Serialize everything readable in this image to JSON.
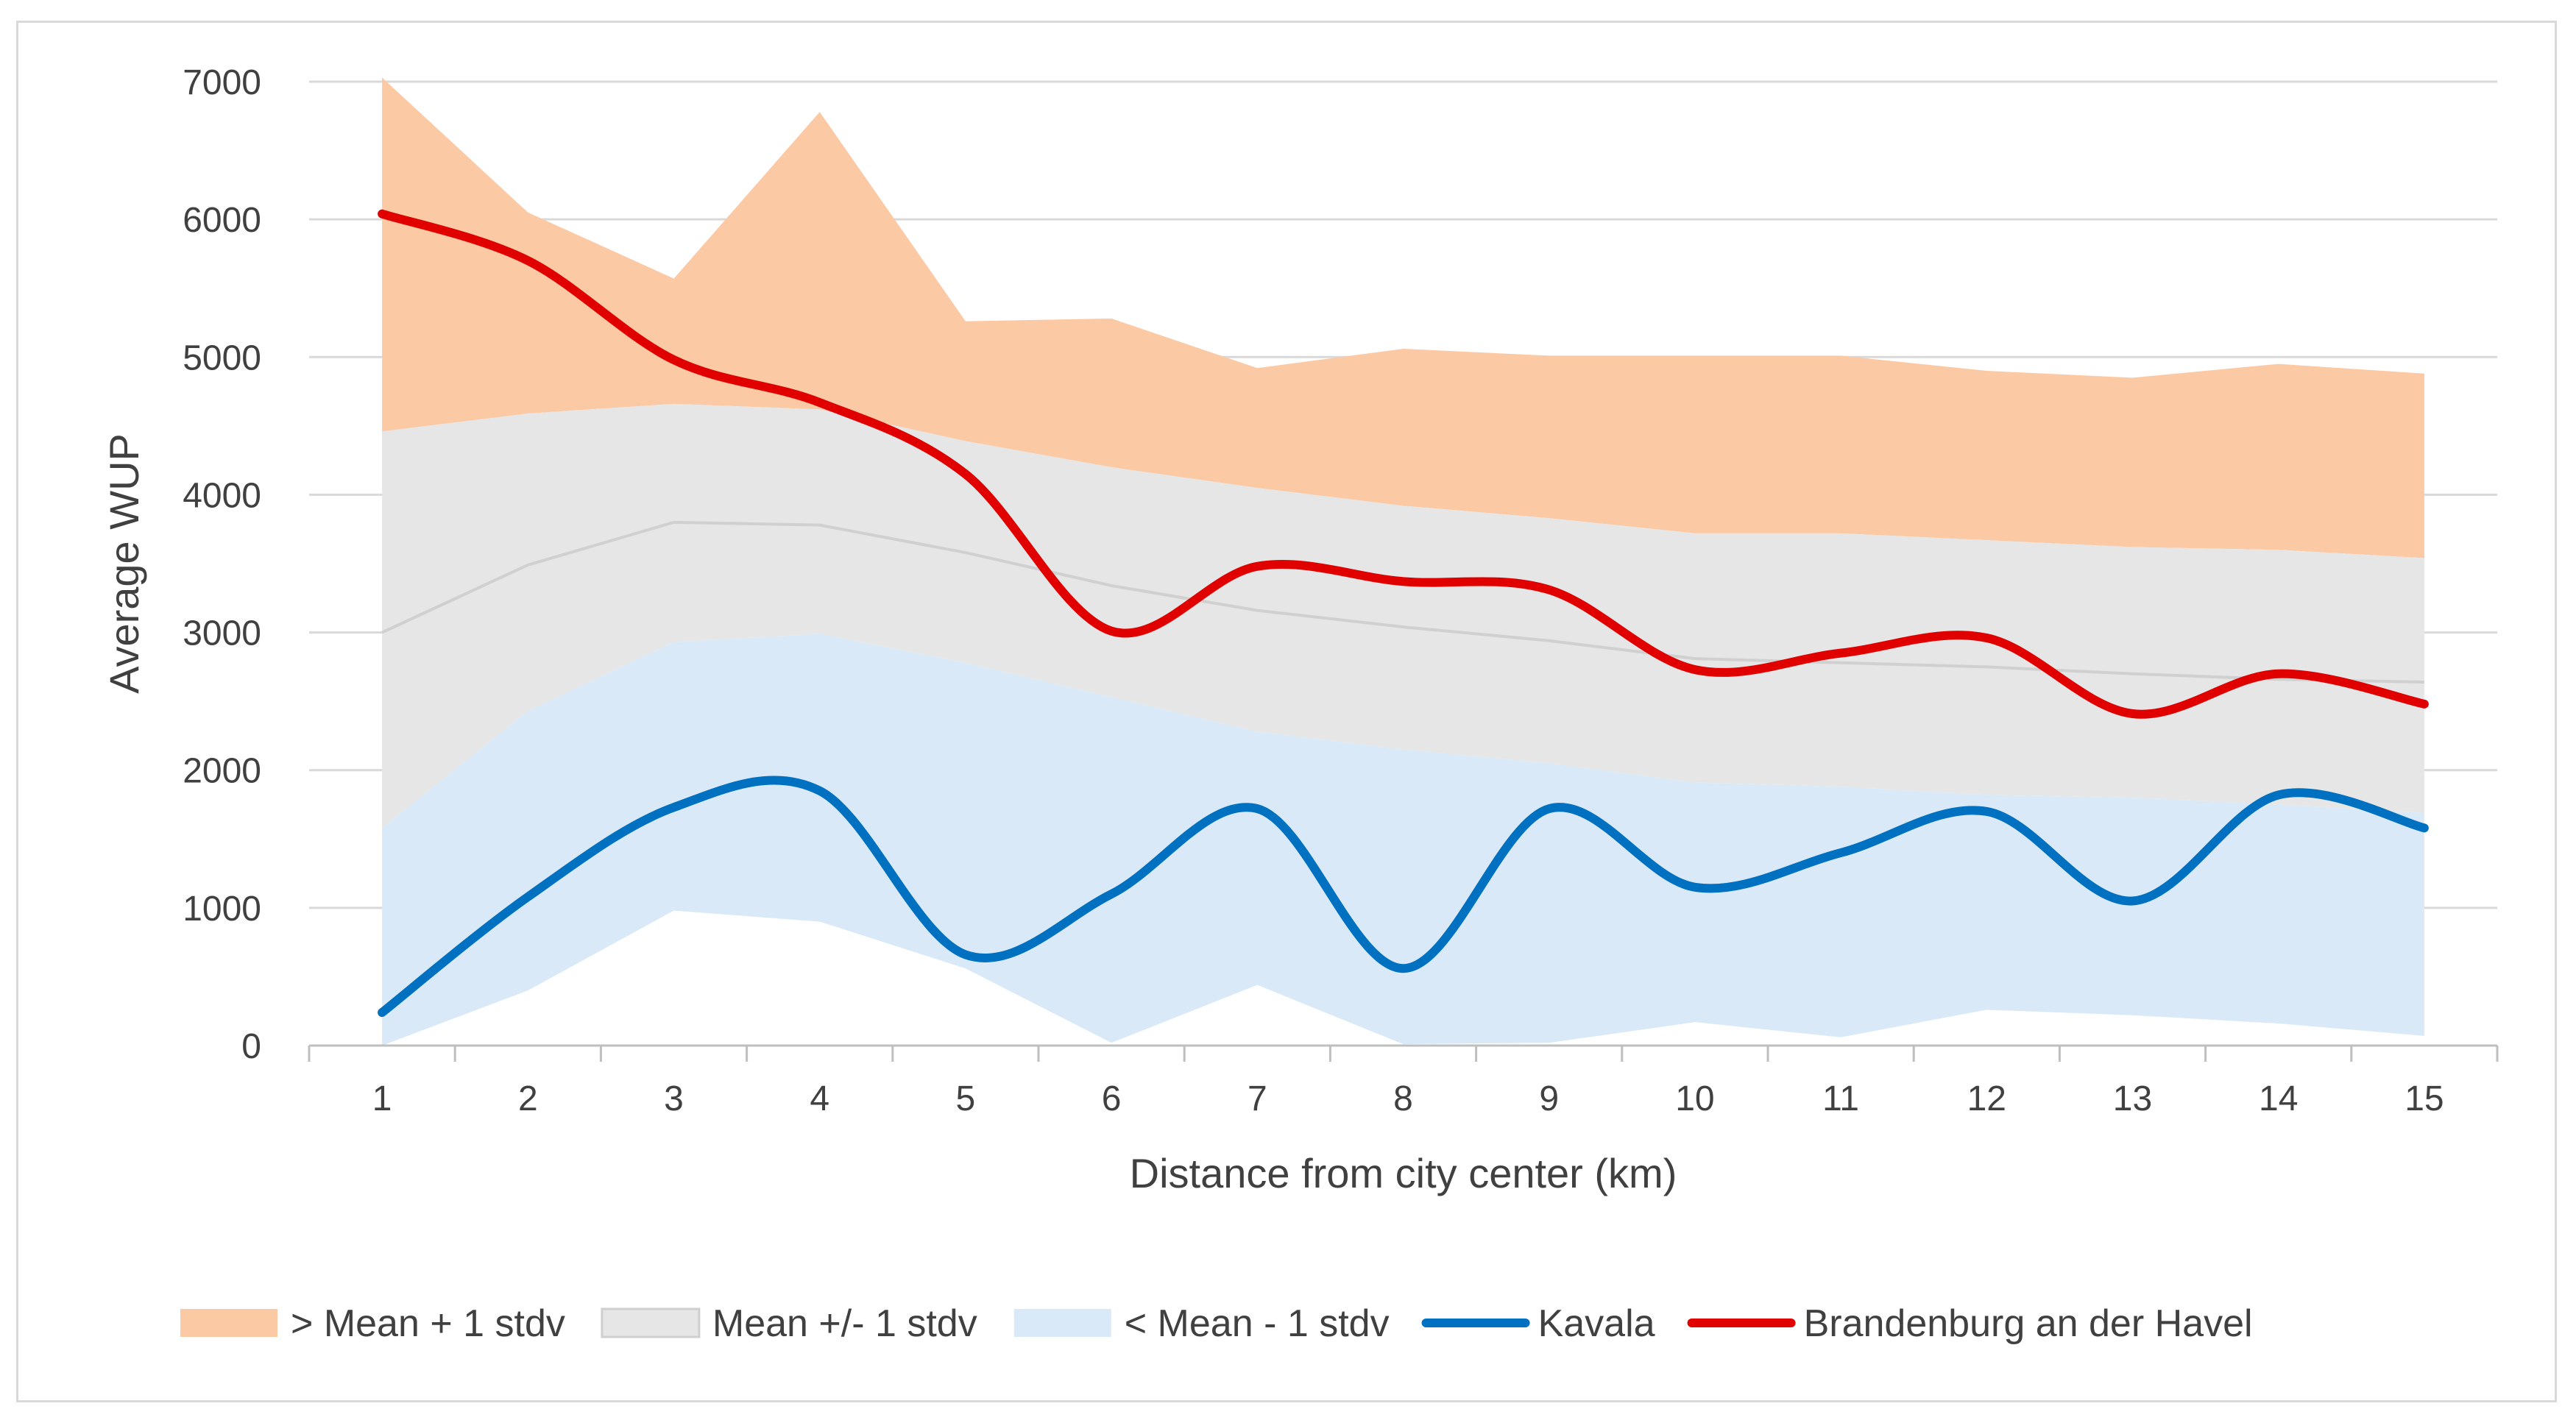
{
  "chart_data": {
    "type": "area",
    "title": "",
    "xlabel": "Distance from city center (km)",
    "ylabel": "Average WUP",
    "ylim": [
      0,
      7000
    ],
    "yticks": [
      0,
      1000,
      2000,
      3000,
      4000,
      5000,
      6000,
      7000
    ],
    "x": [
      1,
      2,
      3,
      4,
      5,
      6,
      7,
      8,
      9,
      10,
      11,
      12,
      13,
      14,
      15
    ],
    "x_tick_labels": [
      "1",
      "2",
      "3",
      "4",
      "5",
      "6",
      "7",
      "8",
      "9",
      "10",
      "11",
      "12",
      "13",
      "14",
      "15"
    ],
    "y_tick_labels": [
      "0",
      "1000",
      "2000",
      "3000",
      "4000",
      "5000",
      "6000",
      "7000"
    ],
    "grid": true,
    "legend_position": "bottom",
    "bands": {
      "max": [
        7030,
        6050,
        5570,
        6780,
        5260,
        5280,
        4920,
        5060,
        5010,
        5010,
        5010,
        4900,
        4850,
        4950,
        4880
      ],
      "mean": [
        3000,
        3490,
        3800,
        3780,
        3580,
        3340,
        3160,
        3040,
        2940,
        2810,
        2780,
        2750,
        2700,
        2660,
        2640
      ],
      "upper": [
        4460,
        4590,
        4660,
        4620,
        4390,
        4200,
        4050,
        3920,
        3830,
        3720,
        3720,
        3670,
        3620,
        3600,
        3540
      ],
      "lower": [
        1580,
        2430,
        2930,
        2990,
        2780,
        2530,
        2280,
        2150,
        2050,
        1910,
        1880,
        1820,
        1800,
        1750,
        1690
      ],
      "min": [
        0,
        400,
        980,
        900,
        560,
        20,
        440,
        10,
        20,
        170,
        60,
        260,
        220,
        160,
        70
      ]
    },
    "series": [
      {
        "name": "Kavala",
        "color": "#0070c0",
        "values": [
          240,
          1080,
          1730,
          1850,
          660,
          1100,
          1720,
          560,
          1720,
          1150,
          1400,
          1700,
          1050,
          1820,
          1580
        ]
      },
      {
        "name": "Brandenburg an der Havel",
        "color": "#e00000",
        "values": [
          6040,
          5700,
          4980,
          4670,
          4150,
          3010,
          3480,
          3370,
          3310,
          2730,
          2850,
          2960,
          2410,
          2700,
          2480
        ]
      }
    ],
    "legend": [
      {
        "label": "> Mean + 1 stdv",
        "kind": "area",
        "color": "#fcc9a5"
      },
      {
        "label": "Mean +/- 1 stdv",
        "kind": "area",
        "color": "#e6e6e6"
      },
      {
        "label": "< Mean - 1 stdv",
        "kind": "area",
        "color": "#dae9f7"
      },
      {
        "label": "Kavala",
        "kind": "line",
        "color": "#0070c0"
      },
      {
        "label": "Brandenburg an der Havel",
        "kind": "line",
        "color": "#e00000"
      }
    ],
    "colors": {
      "above_band": "#fcc9a5",
      "middle_band": "#e6e6e6",
      "below_band": "#dae9f7",
      "grid": "#d9d9d9",
      "axis": "#bfbfbf",
      "mean_line": "#d0d0d0"
    }
  }
}
